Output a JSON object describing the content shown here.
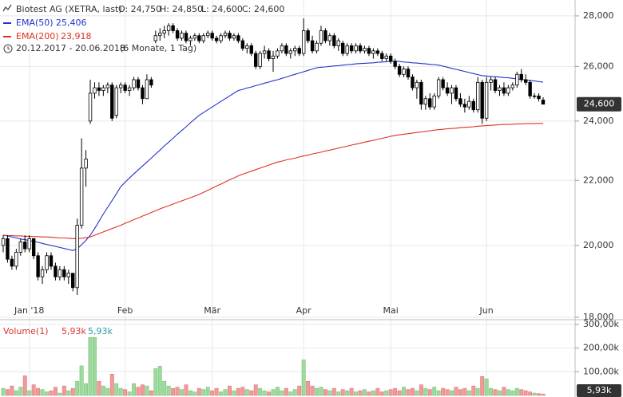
{
  "chart_data": {
    "type": "candlestick",
    "title": "Biotest AG (XETRA, last)",
    "quote": [
      "O: 24,750",
      "H: 24,850",
      "L: 24,600",
      "C: 24,600"
    ],
    "period": "20.12.2017 - 20.06.2018",
    "period_note": "(6 Monate, 1 Tag)",
    "last_label": "24,600",
    "yscale": "log",
    "grid": true,
    "up_color": "#ffffff",
    "down_color": "#000000",
    "wick_color": "#000000",
    "ylim": [
      18,
      28.66
    ],
    "yticks": [
      {
        "value": 18,
        "label": "18,000"
      },
      {
        "value": 20,
        "label": "20,000"
      },
      {
        "value": 22,
        "label": "22,000"
      },
      {
        "value": 24,
        "label": "24,000"
      },
      {
        "value": 26,
        "label": "26,000"
      },
      {
        "value": 28,
        "label": "28,000"
      }
    ],
    "categories": [
      null,
      null,
      null,
      null,
      null,
      null,
      "Jan '18",
      null,
      null,
      null,
      null,
      null,
      null,
      null,
      null,
      null,
      null,
      null,
      null,
      null,
      null,
      null,
      null,
      null,
      null,
      null,
      null,
      null,
      "Feb",
      null,
      null,
      null,
      null,
      null,
      null,
      null,
      null,
      null,
      null,
      null,
      null,
      null,
      null,
      null,
      null,
      null,
      null,
      null,
      "Mär",
      null,
      null,
      null,
      null,
      null,
      null,
      null,
      null,
      null,
      null,
      null,
      null,
      null,
      null,
      null,
      null,
      null,
      null,
      null,
      null,
      "Apr",
      null,
      null,
      null,
      null,
      null,
      null,
      null,
      null,
      null,
      null,
      null,
      null,
      null,
      null,
      null,
      null,
      null,
      null,
      null,
      "Mai",
      null,
      null,
      null,
      null,
      null,
      null,
      null,
      null,
      null,
      null,
      null,
      null,
      null,
      null,
      null,
      null,
      null,
      null,
      null,
      null,
      null,
      "Jun",
      null,
      null,
      null,
      null,
      null,
      null,
      null,
      null,
      null,
      null,
      null,
      null,
      null
    ],
    "open": [
      20.0,
      20.2,
      19.6,
      19.4,
      19.8,
      20.1,
      19.9,
      20.2,
      19.7,
      19.1,
      19.3,
      19.7,
      19.4,
      19.1,
      19.3,
      19.1,
      19.2,
      18.8,
      20.6,
      22.4,
      24.0,
      25.0,
      25.2,
      25.1,
      25.2,
      25.3,
      24.2,
      25.2,
      25.3,
      25.1,
      25.2,
      25.5,
      25.2,
      24.8,
      25.5,
      27.0,
      27.2,
      27.3,
      27.4,
      27.6,
      27.4,
      27.1,
      27.3,
      27.0,
      27.1,
      27.2,
      27.0,
      27.2,
      27.3,
      27.1,
      27.0,
      27.2,
      27.3,
      27.1,
      27.2,
      27.0,
      26.7,
      26.8,
      26.5,
      26.0,
      26.5,
      26.6,
      26.3,
      26.4,
      26.6,
      26.8,
      26.5,
      26.6,
      26.7,
      26.5,
      27.4,
      27.0,
      26.6,
      26.9,
      27.4,
      27.0,
      27.2,
      26.8,
      26.9,
      26.5,
      26.8,
      26.6,
      26.8,
      26.6,
      26.7,
      26.5,
      26.6,
      26.5,
      26.3,
      26.4,
      26.2,
      26.0,
      25.7,
      25.9,
      25.6,
      25.2,
      25.4,
      24.6,
      24.8,
      24.5,
      24.9,
      25.5,
      25.2,
      25.0,
      25.2,
      24.8,
      24.6,
      24.5,
      24.7,
      24.4,
      25.4,
      24.1,
      25.4,
      25.5,
      25.1,
      25.2,
      25.0,
      25.2,
      25.3,
      25.7,
      25.5,
      25.4,
      24.9,
      24.9,
      24.75
    ],
    "high": [
      20.3,
      20.3,
      19.7,
      19.9,
      20.2,
      20.3,
      20.3,
      20.2,
      19.8,
      19.4,
      19.8,
      19.8,
      19.5,
      19.4,
      19.4,
      19.3,
      19.2,
      20.8,
      23.4,
      23.0,
      25.5,
      25.4,
      25.4,
      25.3,
      25.4,
      25.4,
      25.3,
      25.4,
      25.4,
      25.3,
      25.6,
      25.6,
      25.3,
      25.7,
      25.6,
      27.4,
      27.5,
      27.6,
      27.7,
      27.7,
      27.5,
      27.4,
      27.4,
      27.2,
      27.3,
      27.3,
      27.3,
      27.4,
      27.4,
      27.2,
      27.3,
      27.4,
      27.4,
      27.3,
      27.3,
      27.1,
      26.9,
      26.9,
      26.6,
      26.6,
      26.8,
      26.7,
      26.6,
      26.7,
      26.9,
      26.9,
      26.7,
      26.8,
      26.8,
      27.9,
      27.5,
      27.2,
      27.0,
      27.6,
      27.5,
      27.3,
      27.3,
      27.1,
      27.0,
      26.9,
      26.9,
      26.9,
      26.9,
      26.8,
      26.8,
      26.7,
      26.7,
      26.6,
      26.5,
      26.5,
      26.3,
      26.1,
      26.0,
      26.0,
      25.7,
      25.5,
      25.5,
      24.9,
      25.0,
      25.0,
      25.6,
      25.6,
      25.4,
      25.3,
      25.3,
      25.0,
      24.8,
      24.9,
      24.8,
      25.6,
      25.5,
      25.6,
      25.6,
      25.6,
      25.3,
      25.4,
      25.3,
      25.4,
      25.8,
      25.9,
      25.7,
      25.5,
      25.0,
      25.0,
      24.85
    ],
    "low": [
      19.8,
      19.5,
      19.3,
      19.3,
      19.7,
      19.8,
      19.8,
      19.6,
      19.0,
      18.9,
      19.2,
      19.3,
      19.0,
      19.0,
      19.0,
      18.9,
      18.7,
      18.6,
      20.5,
      21.8,
      23.9,
      24.8,
      24.9,
      24.9,
      25.0,
      24.0,
      24.1,
      25.0,
      25.0,
      24.9,
      25.1,
      25.1,
      24.6,
      24.8,
      25.2,
      26.9,
      27.0,
      27.1,
      27.2,
      27.3,
      27.0,
      27.0,
      26.9,
      26.8,
      27.0,
      26.9,
      26.9,
      27.1,
      27.0,
      26.9,
      26.9,
      27.1,
      27.0,
      27.0,
      26.9,
      26.6,
      26.5,
      26.4,
      25.9,
      25.9,
      26.3,
      26.2,
      25.8,
      26.3,
      26.5,
      26.4,
      26.3,
      26.4,
      26.4,
      26.4,
      26.9,
      26.5,
      26.5,
      26.8,
      26.9,
      26.8,
      26.7,
      26.6,
      26.4,
      26.4,
      26.5,
      26.5,
      26.5,
      26.5,
      26.4,
      26.3,
      26.4,
      26.2,
      26.2,
      26.1,
      25.9,
      25.6,
      25.6,
      25.5,
      25.1,
      24.8,
      24.4,
      24.4,
      24.4,
      24.4,
      24.8,
      25.1,
      24.9,
      24.6,
      24.7,
      24.5,
      24.3,
      24.4,
      24.3,
      24.3,
      23.9,
      24.0,
      25.1,
      25.0,
      24.9,
      24.9,
      24.9,
      25.1,
      25.2,
      25.4,
      25.3,
      24.8,
      24.8,
      24.7,
      24.6
    ],
    "close": [
      20.2,
      19.6,
      19.4,
      19.8,
      20.1,
      19.9,
      20.2,
      19.7,
      19.1,
      19.3,
      19.7,
      19.4,
      19.1,
      19.3,
      19.1,
      19.2,
      18.8,
      20.6,
      22.4,
      22.7,
      25.0,
      25.2,
      25.1,
      25.2,
      25.3,
      24.1,
      25.2,
      25.3,
      25.1,
      25.2,
      25.5,
      25.2,
      24.8,
      25.5,
      25.3,
      27.2,
      27.3,
      27.4,
      27.6,
      27.4,
      27.1,
      27.3,
      27.0,
      27.1,
      27.2,
      27.0,
      27.2,
      27.3,
      27.1,
      27.0,
      27.2,
      27.3,
      27.1,
      27.2,
      27.0,
      26.7,
      26.8,
      26.5,
      26.0,
      26.5,
      26.6,
      26.3,
      26.4,
      26.6,
      26.8,
      26.5,
      26.6,
      26.7,
      26.5,
      27.4,
      27.0,
      26.6,
      26.9,
      27.4,
      27.0,
      27.2,
      26.8,
      27.0,
      26.5,
      26.8,
      26.6,
      26.8,
      26.6,
      26.7,
      26.5,
      26.6,
      26.5,
      26.3,
      26.4,
      26.2,
      26.0,
      25.7,
      25.9,
      25.6,
      25.2,
      25.4,
      24.6,
      24.8,
      24.5,
      24.9,
      25.5,
      25.2,
      25.0,
      25.2,
      24.8,
      24.6,
      24.5,
      24.7,
      24.4,
      25.4,
      24.1,
      25.4,
      25.5,
      25.1,
      25.2,
      25.0,
      25.2,
      25.3,
      25.7,
      25.5,
      25.4,
      24.9,
      24.9,
      24.8,
      24.6
    ],
    "series": [
      {
        "name": "EMA(50)",
        "color": "#2233cc",
        "last_label": "25,406",
        "values": [
          20.3,
          20.28,
          20.25,
          20.22,
          20.19,
          20.17,
          20.14,
          20.12,
          20.09,
          20.06,
          20.03,
          20.0,
          19.97,
          19.94,
          19.91,
          19.88,
          19.85,
          19.9,
          20.02,
          20.15,
          20.3,
          20.5,
          20.72,
          20.94,
          21.15,
          21.36,
          21.57,
          21.8,
          21.94,
          22.08,
          22.21,
          22.34,
          22.47,
          22.6,
          22.73,
          22.87,
          23.0,
          23.14,
          23.27,
          23.4,
          23.54,
          23.67,
          23.8,
          23.94,
          24.07,
          24.2,
          24.3,
          24.4,
          24.5,
          24.6,
          24.7,
          24.8,
          24.9,
          25.0,
          25.1,
          25.14,
          25.19,
          25.23,
          25.28,
          25.32,
          25.37,
          25.41,
          25.46,
          25.5,
          25.55,
          25.6,
          25.65,
          25.7,
          25.75,
          25.8,
          25.85,
          25.9,
          25.95,
          25.97,
          25.98,
          26.0,
          26.02,
          26.03,
          26.05,
          26.07,
          26.08,
          26.1,
          26.11,
          26.12,
          26.13,
          26.14,
          26.16,
          26.17,
          26.18,
          26.19,
          26.2,
          26.19,
          26.17,
          26.16,
          26.14,
          26.13,
          26.11,
          26.1,
          26.08,
          26.07,
          26.05,
          26.01,
          25.97,
          25.93,
          25.89,
          25.85,
          25.81,
          25.77,
          25.73,
          25.69,
          25.65,
          25.64,
          25.62,
          25.61,
          25.6,
          25.58,
          25.57,
          25.55,
          25.53,
          25.51,
          25.49,
          25.47,
          25.45,
          25.43,
          25.406
        ]
      },
      {
        "name": "EMA(200)",
        "color": "#dd3322",
        "last_label": "23,918",
        "values": [
          20.3,
          20.29,
          20.29,
          20.28,
          20.28,
          20.27,
          20.27,
          20.26,
          20.26,
          20.25,
          20.25,
          20.24,
          20.23,
          20.22,
          20.22,
          20.21,
          20.2,
          20.2,
          20.21,
          20.23,
          20.25,
          20.3,
          20.35,
          20.4,
          20.45,
          20.5,
          20.55,
          20.6,
          20.66,
          20.71,
          20.77,
          20.82,
          20.88,
          20.93,
          20.99,
          21.04,
          21.1,
          21.15,
          21.2,
          21.25,
          21.3,
          21.35,
          21.4,
          21.45,
          21.5,
          21.55,
          21.62,
          21.68,
          21.75,
          21.82,
          21.88,
          21.95,
          22.02,
          22.08,
          22.15,
          22.2,
          22.25,
          22.3,
          22.35,
          22.4,
          22.45,
          22.5,
          22.55,
          22.6,
          22.63,
          22.67,
          22.7,
          22.73,
          22.77,
          22.8,
          22.83,
          22.87,
          22.9,
          22.93,
          22.97,
          23.0,
          23.03,
          23.07,
          23.1,
          23.13,
          23.17,
          23.2,
          23.23,
          23.27,
          23.3,
          23.33,
          23.37,
          23.4,
          23.43,
          23.47,
          23.5,
          23.52,
          23.54,
          23.56,
          23.58,
          23.6,
          23.62,
          23.64,
          23.66,
          23.68,
          23.7,
          23.71,
          23.73,
          23.74,
          23.75,
          23.77,
          23.78,
          23.79,
          23.8,
          23.82,
          23.83,
          23.84,
          23.85,
          23.86,
          23.87,
          23.88,
          23.88,
          23.89,
          23.9,
          23.9,
          23.91,
          23.91,
          23.915,
          23.917,
          23.918
        ]
      }
    ],
    "volume": {
      "name": "Volume(1)",
      "legend_values": [
        "5,93k",
        "5,93k"
      ],
      "up_color": "#9ed99e",
      "down_color": "#f09a9a",
      "ylim": [
        0,
        310000
      ],
      "yticks": [
        {
          "value": 100000,
          "label": "100,00k"
        },
        {
          "value": 200000,
          "label": "200,00k"
        },
        {
          "value": 300000,
          "label": "300,00k"
        }
      ],
      "values": [
        30000,
        25000,
        40000,
        20000,
        35000,
        83000,
        20000,
        45000,
        30000,
        25000,
        15000,
        20000,
        35000,
        10000,
        40000,
        20000,
        30000,
        60000,
        125000,
        50000,
        245000,
        245000,
        60000,
        40000,
        30000,
        90000,
        50000,
        30000,
        25000,
        15000,
        50000,
        35000,
        45000,
        40000,
        20000,
        113000,
        124000,
        60000,
        40000,
        30000,
        35000,
        25000,
        45000,
        20000,
        15000,
        30000,
        25000,
        35000,
        20000,
        30000,
        15000,
        25000,
        40000,
        20000,
        30000,
        35000,
        25000,
        20000,
        45000,
        30000,
        20000,
        15000,
        25000,
        35000,
        20000,
        30000,
        15000,
        25000,
        40000,
        150000,
        60000,
        40000,
        30000,
        35000,
        25000,
        20000,
        30000,
        15000,
        25000,
        20000,
        30000,
        15000,
        20000,
        25000,
        15000,
        20000,
        30000,
        15000,
        20000,
        25000,
        30000,
        20000,
        35000,
        25000,
        30000,
        20000,
        45000,
        30000,
        25000,
        35000,
        20000,
        30000,
        25000,
        20000,
        35000,
        25000,
        30000,
        20000,
        40000,
        30000,
        80000,
        70000,
        30000,
        25000,
        20000,
        35000,
        25000,
        20000,
        30000,
        25000,
        20000,
        15000,
        10000,
        8000,
        5930
      ]
    }
  }
}
